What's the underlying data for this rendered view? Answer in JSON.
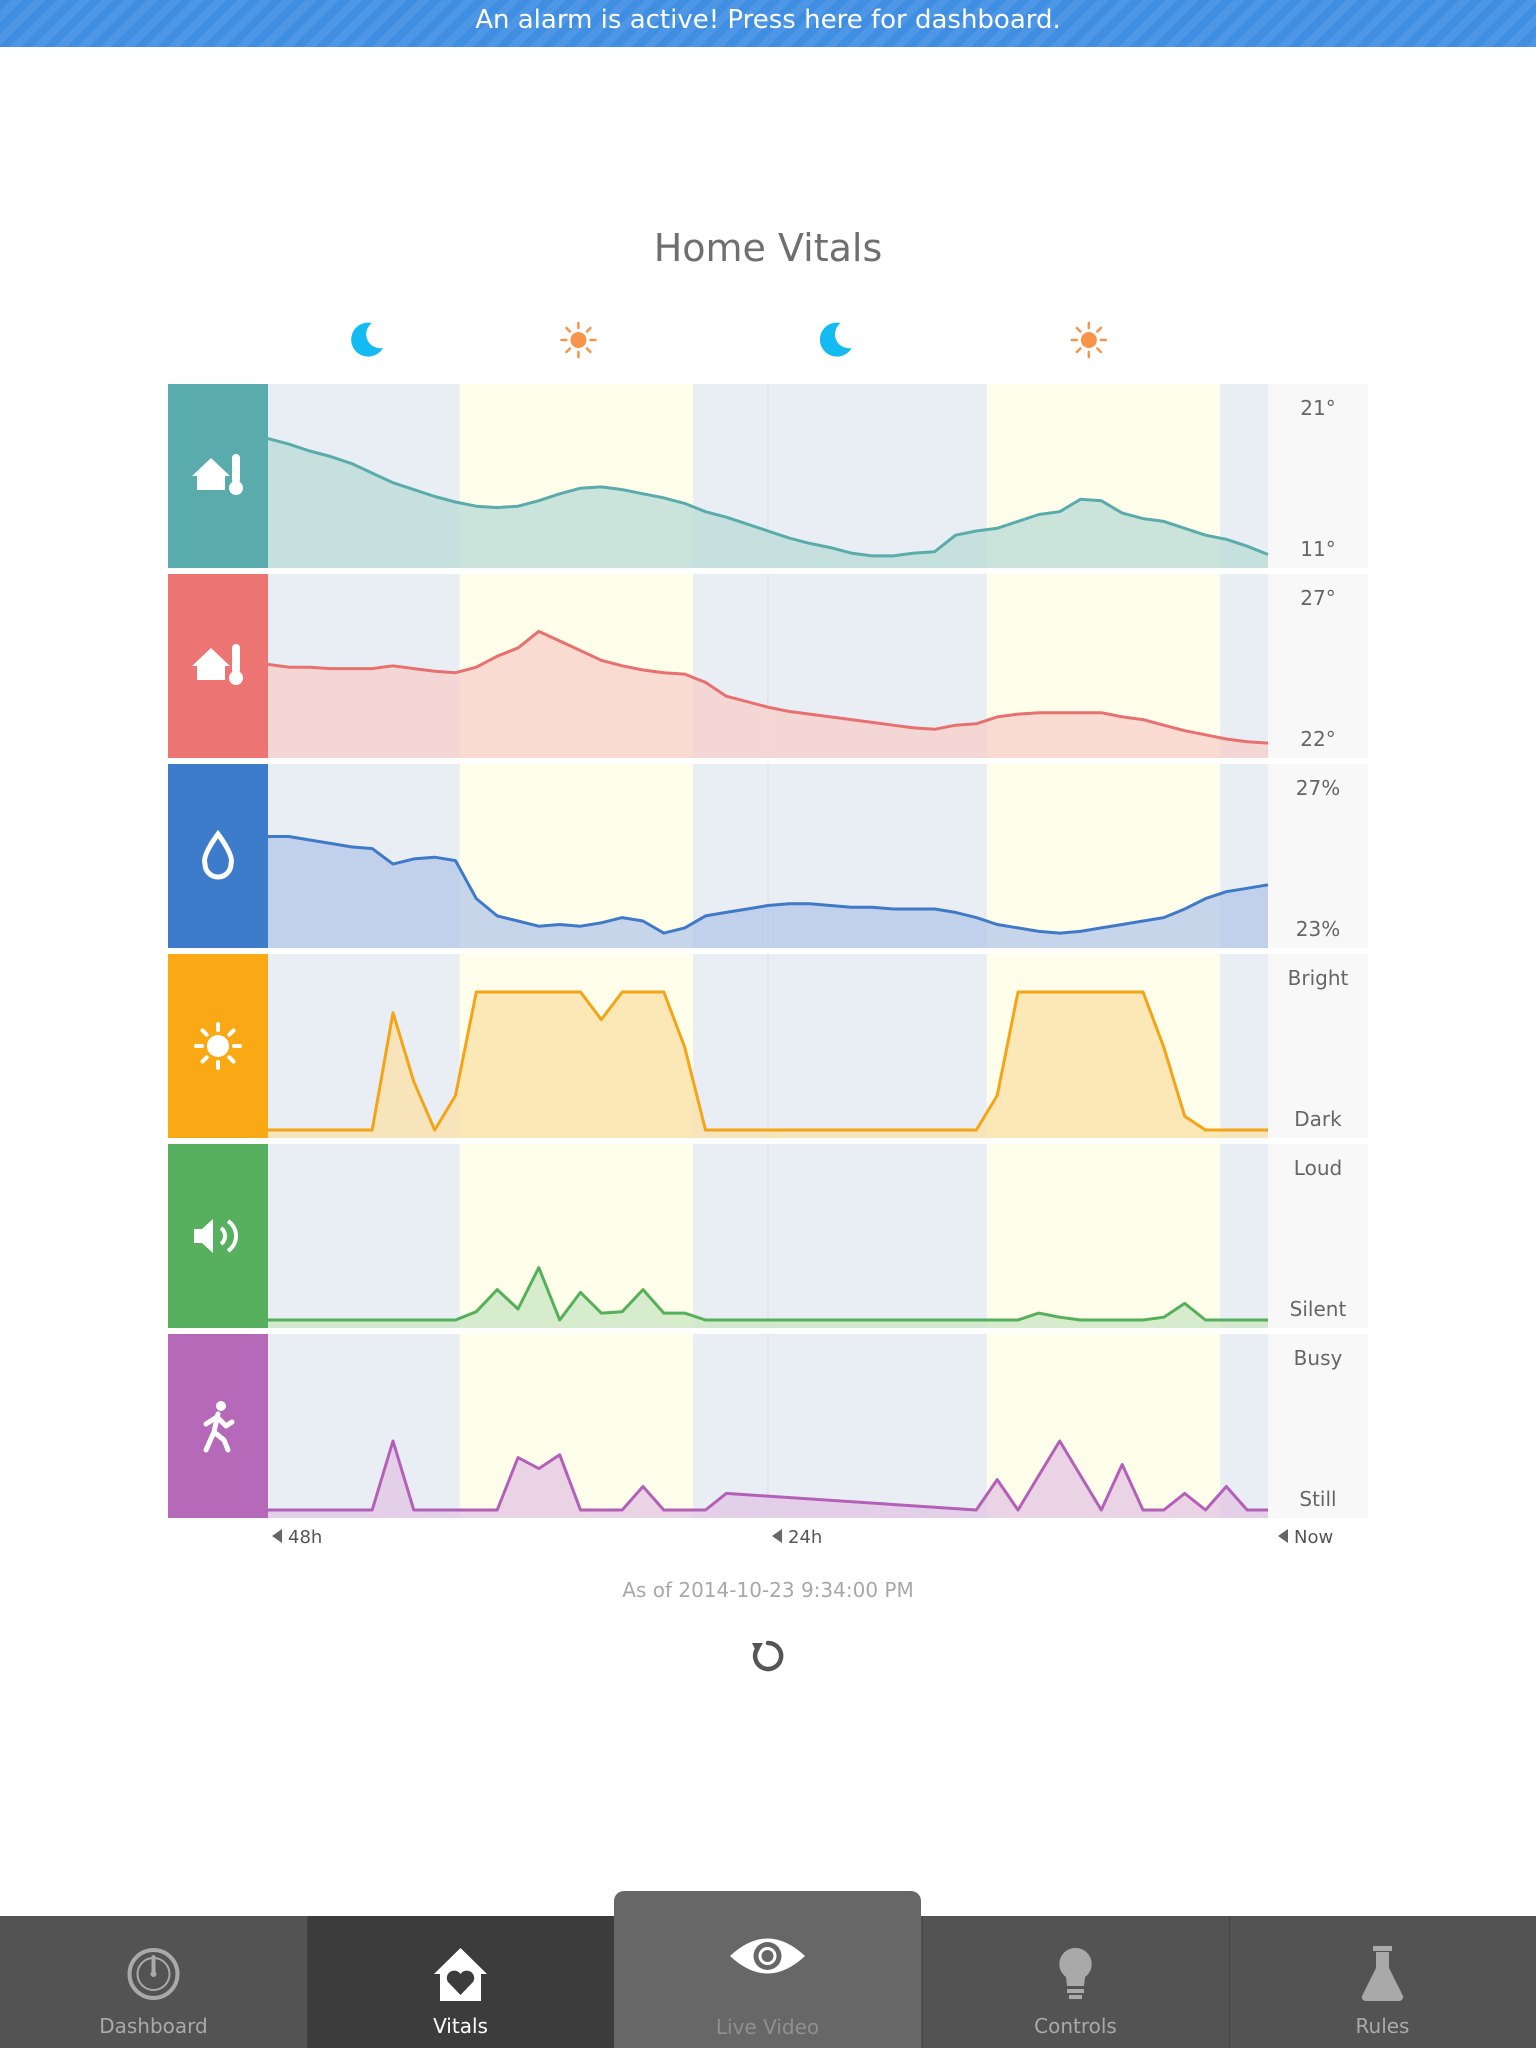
{
  "alert_banner": {
    "text": "An alarm is active! Press here for dashboard."
  },
  "page": {
    "title": "Home Vitals"
  },
  "chart_data": {
    "type": "area",
    "x_range_hours": [
      -48,
      0
    ],
    "x_ticks": [
      {
        "hours": -48,
        "label": "48h"
      },
      {
        "hours": -24,
        "label": "24h"
      },
      {
        "hours": 0,
        "label": "Now"
      }
    ],
    "day_bands": [
      [
        -38.8,
        -27.6
      ],
      [
        -13.5,
        -2.3
      ]
    ],
    "sky_markers": [
      {
        "hours": -43.3,
        "symbol": "moon"
      },
      {
        "hours": -33.1,
        "symbol": "sun"
      },
      {
        "hours": -20.8,
        "symbol": "moon"
      },
      {
        "hours": -8.6,
        "symbol": "sun"
      }
    ],
    "series": [
      {
        "icon": "house-thermometer-icon",
        "color": "#5aacac",
        "panel_color": "#5aacac",
        "fill": "#b9dbd5",
        "label_max": "21°",
        "label_min": "11°",
        "y_range": [
          11,
          21
        ],
        "x": [
          -48,
          -47,
          -46,
          -45,
          -44,
          -43,
          -42,
          -41,
          -40,
          -39,
          -38,
          -37,
          -36,
          -35,
          -34,
          -33,
          -32,
          -31,
          -30,
          -29,
          -28,
          -27,
          -26,
          -25,
          -24,
          -23,
          -22,
          -21,
          -20,
          -19,
          -18,
          -17,
          -16,
          -15,
          -14,
          -13,
          -12,
          -11,
          -10,
          -9,
          -8,
          -7,
          -6,
          -5,
          -4,
          -3,
          -2,
          -1,
          0
        ],
        "y": [
          19.8,
          19.4,
          18.9,
          18.5,
          18.0,
          17.3,
          16.6,
          16.1,
          15.6,
          15.2,
          14.9,
          14.8,
          14.9,
          15.3,
          15.8,
          16.2,
          16.3,
          16.1,
          15.8,
          15.5,
          15.1,
          14.5,
          14.1,
          13.6,
          13.1,
          12.6,
          12.2,
          11.9,
          11.5,
          11.3,
          11.3,
          11.5,
          11.6,
          12.8,
          13.1,
          13.3,
          13.8,
          14.3,
          14.5,
          15.4,
          15.3,
          14.4,
          14.0,
          13.8,
          13.3,
          12.8,
          12.5,
          12.0,
          11.4
        ]
      },
      {
        "icon": "house-thermometer-icon",
        "color": "#e8706f",
        "panel_color": "#ec7574",
        "fill": "#f7cfc9",
        "label_max": "27°",
        "label_min": "22°",
        "y_range": [
          22,
          27
        ],
        "x": [
          -48,
          -47,
          -46,
          -45,
          -44,
          -43,
          -42,
          -41,
          -40,
          -39,
          -38,
          -37,
          -36,
          -35,
          -34,
          -33,
          -32,
          -31,
          -30,
          -29,
          -28,
          -27,
          -26,
          -25,
          -24,
          -23,
          -22,
          -21,
          -20,
          -19,
          -18,
          -17,
          -16,
          -15,
          -14,
          -13,
          -12,
          -11,
          -10,
          -9,
          -8,
          -7,
          -6,
          -5,
          -4,
          -3,
          -2,
          -1,
          0
        ],
        "y": [
          25.1,
          25.0,
          25.0,
          24.95,
          24.95,
          24.95,
          25.05,
          24.95,
          24.85,
          24.8,
          25.0,
          25.4,
          25.7,
          26.3,
          25.95,
          25.6,
          25.25,
          25.05,
          24.9,
          24.8,
          24.75,
          24.45,
          23.95,
          23.75,
          23.55,
          23.4,
          23.3,
          23.2,
          23.1,
          23.0,
          22.9,
          22.8,
          22.75,
          22.9,
          22.95,
          23.2,
          23.3,
          23.35,
          23.35,
          23.35,
          23.35,
          23.2,
          23.1,
          22.9,
          22.7,
          22.55,
          22.4,
          22.3,
          22.25
        ]
      },
      {
        "icon": "water-drop-icon",
        "color": "#3f7ac9",
        "panel_color": "#3d7ccb",
        "fill": "#b3c7e8",
        "label_max": "27%",
        "label_min": "23%",
        "y_range": [
          23,
          27
        ],
        "x": [
          -48,
          -47,
          -46,
          -45,
          -44,
          -43,
          -42,
          -41,
          -40,
          -39,
          -38,
          -37,
          -36,
          -35,
          -34,
          -33,
          -32,
          -31,
          -30,
          -29,
          -28,
          -27,
          -26,
          -25,
          -24,
          -23,
          -22,
          -21,
          -20,
          -19,
          -18,
          -17,
          -16,
          -15,
          -14,
          -13,
          -12,
          -11,
          -10,
          -9,
          -8,
          -7,
          -6,
          -5,
          -4,
          -3,
          -2,
          -1,
          0
        ],
        "y": [
          26.0,
          26.0,
          25.9,
          25.8,
          25.7,
          25.65,
          25.2,
          25.35,
          25.4,
          25.3,
          24.2,
          23.7,
          23.55,
          23.4,
          23.45,
          23.4,
          23.5,
          23.65,
          23.55,
          23.2,
          23.35,
          23.7,
          23.8,
          23.9,
          24.0,
          24.05,
          24.05,
          24.0,
          23.95,
          23.95,
          23.9,
          23.9,
          23.9,
          23.8,
          23.65,
          23.45,
          23.35,
          23.25,
          23.2,
          23.25,
          23.35,
          23.45,
          23.55,
          23.65,
          23.9,
          24.2,
          24.4,
          24.5,
          24.6
        ]
      },
      {
        "icon": "sun-icon",
        "color": "#f4a417",
        "panel_color": "#fba815",
        "fill": "#fbe0a6",
        "label_max": "Bright",
        "label_min": "Dark",
        "y_range": [
          0,
          1
        ],
        "x": [
          -48,
          -43,
          -42,
          -41,
          -40,
          -39,
          -38,
          -37,
          -36,
          -35,
          -34,
          -33,
          -32,
          -31,
          -30,
          -29.5,
          -29,
          -28,
          -27,
          -26,
          -24,
          -14,
          -13,
          -12,
          -11,
          -10,
          -9,
          -8,
          -7,
          -6,
          -5,
          -4,
          -3,
          -2,
          -1,
          0
        ],
        "y": [
          0,
          0,
          0.85,
          0.35,
          0,
          0.25,
          1,
          1,
          1,
          1,
          1,
          1,
          0.8,
          1,
          1,
          1,
          1,
          0.6,
          0,
          0,
          0,
          0,
          0.25,
          1,
          1,
          1,
          1,
          1,
          1,
          1,
          0.6,
          0.1,
          0,
          0,
          0,
          0
        ]
      },
      {
        "icon": "speaker-icon",
        "color": "#55b05a",
        "panel_color": "#56b05e",
        "fill": "#c9e6c1",
        "label_max": "Loud",
        "label_min": "Silent",
        "y_range": [
          0,
          1
        ],
        "x": [
          -48,
          -39,
          -38,
          -37,
          -36,
          -35,
          -34,
          -33,
          -32,
          -31,
          -30,
          -29,
          -28,
          -27,
          -26,
          -25,
          -12,
          -11,
          -10,
          -9,
          -6,
          -5,
          -4,
          -3,
          -2,
          -1,
          0
        ],
        "y": [
          0,
          0,
          0.06,
          0.22,
          0.08,
          0.38,
          0,
          0.2,
          0.05,
          0.06,
          0.22,
          0.05,
          0.05,
          0,
          0,
          0,
          0,
          0.05,
          0.02,
          0,
          0,
          0.02,
          0.12,
          0,
          0,
          0,
          0
        ]
      },
      {
        "icon": "walking-person-icon",
        "color": "#b460b8",
        "panel_color": "#b769b9",
        "fill": "#e1c4e3",
        "label_max": "Busy",
        "label_min": "Still",
        "y_range": [
          0,
          1
        ],
        "x": [
          -48,
          -43,
          -42,
          -41,
          -38,
          -37,
          -36,
          -35,
          -34,
          -33,
          -32,
          -31,
          -30,
          -29,
          -28,
          -27,
          -26,
          -14,
          -13,
          -12,
          -11,
          -10,
          -9,
          -8,
          -7,
          -6,
          -5,
          -4,
          -3,
          -2,
          -1,
          0
        ],
        "y": [
          0,
          0,
          0.5,
          0,
          0,
          0,
          0.38,
          0.3,
          0.4,
          0,
          0,
          0,
          0.17,
          0,
          0,
          0,
          0.12,
          0,
          0.22,
          0,
          0.25,
          0.5,
          0.25,
          0,
          0.33,
          0,
          0,
          0.12,
          0,
          0.17,
          0,
          0
        ]
      }
    ]
  },
  "as_of": "As of 2014-10-23 9:34:00 PM",
  "tabs": [
    {
      "label": "Dashboard",
      "icon": "gauge-icon"
    },
    {
      "label": "Vitals",
      "icon": "house-heart-icon"
    },
    {
      "label": "Live Video",
      "icon": "eye-icon"
    },
    {
      "label": "Controls",
      "icon": "lightbulb-icon"
    },
    {
      "label": "Rules",
      "icon": "flask-icon"
    }
  ]
}
